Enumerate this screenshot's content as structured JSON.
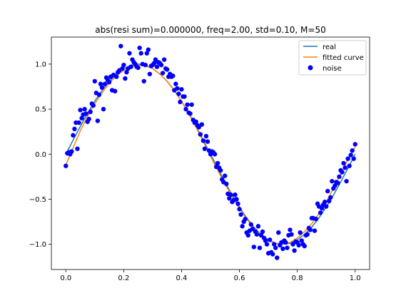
{
  "chart_data": {
    "type": "line",
    "title": "abs(resi sum)=0.000000, freq=2.00, std=0.10, M=50",
    "xlabel": "",
    "ylabel": "",
    "xlim": [
      -0.05,
      1.05
    ],
    "ylim": [
      -1.28,
      1.3
    ],
    "x_ticks": [
      0.0,
      0.2,
      0.4,
      0.6,
      0.8,
      1.0
    ],
    "x_tick_labels": [
      "0.0",
      "0.2",
      "0.4",
      "0.6",
      "0.8",
      "1.0"
    ],
    "y_ticks": [
      -1.0,
      -0.5,
      0.0,
      0.5,
      1.0
    ],
    "y_tick_labels": [
      "−1.0",
      "−0.5",
      "0.0",
      "0.5",
      "1.0"
    ],
    "grid": false,
    "legend_position": "top-right",
    "series": [
      {
        "name": "real",
        "kind": "line",
        "color": "#1f77b4",
        "x": [
          0.0,
          0.025,
          0.05,
          0.075,
          0.1,
          0.125,
          0.15,
          0.175,
          0.2,
          0.225,
          0.25,
          0.275,
          0.3,
          0.325,
          0.35,
          0.375,
          0.4,
          0.425,
          0.45,
          0.475,
          0.5,
          0.525,
          0.55,
          0.575,
          0.6,
          0.625,
          0.65,
          0.675,
          0.7,
          0.725,
          0.75,
          0.775,
          0.8,
          0.825,
          0.85,
          0.875,
          0.9,
          0.925,
          0.95,
          0.975,
          1.0
        ],
        "y": [
          0.0,
          0.156,
          0.309,
          0.454,
          0.588,
          0.707,
          0.809,
          0.891,
          0.951,
          0.988,
          1.0,
          0.988,
          0.951,
          0.891,
          0.809,
          0.707,
          0.588,
          0.454,
          0.309,
          0.156,
          0.0,
          -0.156,
          -0.309,
          -0.454,
          -0.588,
          -0.707,
          -0.809,
          -0.891,
          -0.951,
          -0.988,
          -1.0,
          -0.988,
          -0.951,
          -0.891,
          -0.809,
          -0.707,
          -0.588,
          -0.454,
          -0.309,
          -0.156,
          0.0
        ]
      },
      {
        "name": "fitted curve",
        "kind": "line",
        "color": "#ff7f0e",
        "x": [
          0.0,
          0.025,
          0.05,
          0.075,
          0.1,
          0.125,
          0.15,
          0.175,
          0.2,
          0.225,
          0.25,
          0.275,
          0.3,
          0.325,
          0.35,
          0.375,
          0.4,
          0.425,
          0.45,
          0.475,
          0.5,
          0.525,
          0.55,
          0.575,
          0.6,
          0.625,
          0.65,
          0.675,
          0.7,
          0.725,
          0.75,
          0.775,
          0.8,
          0.825,
          0.85,
          0.875,
          0.9,
          0.925,
          0.95,
          0.975,
          1.0
        ],
        "y": [
          -0.12,
          0.07,
          0.26,
          0.42,
          0.56,
          0.68,
          0.79,
          0.87,
          0.93,
          0.97,
          0.99,
          0.98,
          0.95,
          0.89,
          0.81,
          0.71,
          0.59,
          0.45,
          0.3,
          0.14,
          -0.02,
          -0.18,
          -0.33,
          -0.47,
          -0.6,
          -0.72,
          -0.82,
          -0.9,
          -0.96,
          -0.99,
          -1.0,
          -0.98,
          -0.93,
          -0.86,
          -0.77,
          -0.66,
          -0.53,
          -0.38,
          -0.22,
          -0.06,
          0.08
        ]
      },
      {
        "name": "noise",
        "kind": "scatter",
        "color": "#0000ff",
        "x": [
          0.0,
          0.005,
          0.01,
          0.015,
          0.02,
          0.025,
          0.03,
          0.035,
          0.04,
          0.045,
          0.05,
          0.055,
          0.06,
          0.065,
          0.07,
          0.075,
          0.08,
          0.085,
          0.09,
          0.095,
          0.1,
          0.105,
          0.11,
          0.115,
          0.12,
          0.125,
          0.13,
          0.135,
          0.14,
          0.145,
          0.15,
          0.155,
          0.16,
          0.165,
          0.17,
          0.175,
          0.18,
          0.185,
          0.19,
          0.195,
          0.2,
          0.205,
          0.21,
          0.215,
          0.22,
          0.225,
          0.23,
          0.235,
          0.24,
          0.245,
          0.25,
          0.255,
          0.26,
          0.265,
          0.27,
          0.275,
          0.28,
          0.285,
          0.29,
          0.295,
          0.3,
          0.305,
          0.31,
          0.315,
          0.32,
          0.325,
          0.33,
          0.335,
          0.34,
          0.345,
          0.35,
          0.355,
          0.36,
          0.365,
          0.37,
          0.375,
          0.38,
          0.385,
          0.39,
          0.395,
          0.4,
          0.405,
          0.41,
          0.415,
          0.42,
          0.425,
          0.43,
          0.435,
          0.44,
          0.445,
          0.45,
          0.455,
          0.46,
          0.465,
          0.47,
          0.475,
          0.48,
          0.485,
          0.49,
          0.495,
          0.5,
          0.505,
          0.51,
          0.515,
          0.52,
          0.525,
          0.53,
          0.535,
          0.54,
          0.545,
          0.55,
          0.555,
          0.56,
          0.565,
          0.57,
          0.575,
          0.58,
          0.585,
          0.59,
          0.595,
          0.6,
          0.605,
          0.61,
          0.615,
          0.62,
          0.625,
          0.63,
          0.635,
          0.64,
          0.645,
          0.65,
          0.655,
          0.66,
          0.665,
          0.67,
          0.675,
          0.68,
          0.685,
          0.69,
          0.695,
          0.7,
          0.705,
          0.71,
          0.715,
          0.72,
          0.725,
          0.73,
          0.735,
          0.74,
          0.745,
          0.75,
          0.755,
          0.76,
          0.765,
          0.77,
          0.775,
          0.78,
          0.785,
          0.79,
          0.795,
          0.8,
          0.805,
          0.81,
          0.815,
          0.82,
          0.825,
          0.83,
          0.835,
          0.84,
          0.845,
          0.85,
          0.855,
          0.86,
          0.865,
          0.87,
          0.875,
          0.88,
          0.885,
          0.89,
          0.895,
          0.9,
          0.905,
          0.91,
          0.915,
          0.92,
          0.925,
          0.93,
          0.935,
          0.94,
          0.945,
          0.95,
          0.955,
          0.96,
          0.965,
          0.97,
          0.975,
          0.98,
          0.985,
          0.99,
          0.995,
          1.0
        ],
        "y": [
          -0.13,
          0.01,
          0.02,
          0.0,
          0.03,
          0.21,
          0.28,
          0.35,
          0.06,
          0.35,
          0.49,
          0.4,
          0.44,
          0.5,
          0.45,
          0.36,
          0.39,
          0.47,
          0.56,
          0.54,
          0.81,
          0.68,
          0.37,
          0.66,
          0.78,
          0.74,
          0.5,
          0.78,
          0.85,
          0.82,
          0.8,
          0.86,
          0.71,
          0.88,
          0.7,
          0.86,
          0.91,
          0.93,
          1.2,
          0.95,
          0.99,
          0.84,
          0.91,
          0.95,
          1.12,
          0.97,
          1.05,
          1.02,
          1.0,
          0.97,
          0.96,
          1.18,
          1.12,
          1.0,
          0.81,
          0.99,
          1.12,
          1.16,
          0.89,
          0.98,
          0.99,
          1.01,
          1.05,
          0.97,
          1.02,
          1.01,
          0.99,
          0.9,
          1.05,
          0.95,
          0.94,
          0.86,
          0.89,
          0.86,
          0.87,
          0.71,
          0.78,
          0.73,
          0.67,
          0.58,
          0.72,
          0.64,
          0.64,
          0.5,
          0.55,
          0.46,
          0.45,
          0.55,
          0.38,
          0.35,
          0.36,
          0.32,
          0.3,
          0.22,
          0.33,
          0.15,
          0.06,
          0.2,
          0.14,
          0.04,
          0.0,
          0.03,
          0.02,
          0.0,
          -0.14,
          -0.1,
          -0.15,
          -0.18,
          -0.28,
          -0.31,
          -0.24,
          -0.33,
          -0.44,
          -0.49,
          -0.45,
          -0.53,
          -0.51,
          -0.45,
          -0.5,
          -0.55,
          -0.61,
          -0.67,
          -0.8,
          -0.75,
          -0.72,
          -0.87,
          -0.9,
          -0.85,
          -0.78,
          -0.83,
          -1.03,
          -0.86,
          -0.89,
          -0.8,
          -1.04,
          -0.9,
          -0.86,
          -0.93,
          -0.96,
          -1.0,
          -1.1,
          -0.95,
          -1.09,
          -1.11,
          -1.0,
          -1.04,
          -1.15,
          -0.87,
          -1.01,
          -0.98,
          -1.05,
          -0.96,
          -0.98,
          -1.04,
          -0.9,
          -0.84,
          -0.89,
          -1.0,
          -1.07,
          -0.97,
          -0.98,
          -1.01,
          -0.87,
          -0.96,
          -1.0,
          -1.02,
          -0.9,
          -0.89,
          -0.82,
          -0.84,
          -0.71,
          -0.71,
          -0.85,
          -0.72,
          -0.55,
          -0.58,
          -0.65,
          -0.6,
          -0.56,
          -0.53,
          -0.58,
          -0.41,
          -0.52,
          -0.48,
          -0.3,
          -0.38,
          -0.35,
          -0.31,
          -0.32,
          -0.25,
          -0.18,
          -0.2,
          -0.1,
          -0.15,
          -0.3,
          -0.05,
          -0.13,
          -0.01,
          0.04,
          -0.05,
          0.11
        ]
      }
    ]
  }
}
